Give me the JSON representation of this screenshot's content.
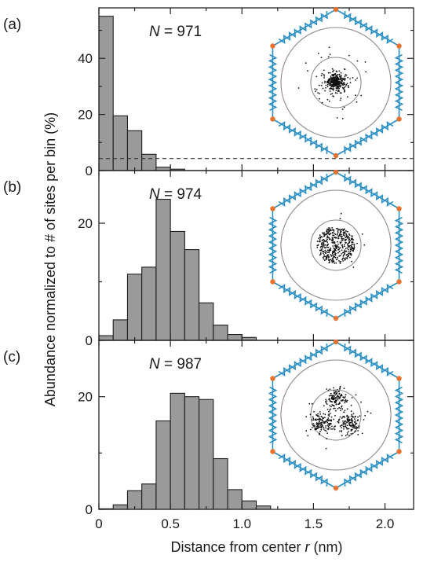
{
  "chart_data": [
    {
      "type": "bar",
      "panel": "(a)",
      "annotation": {
        "n_symbol": "N",
        "n_value": "= 971"
      },
      "bin_width": 0.1,
      "bin_starts": [
        0.0,
        0.1,
        0.2,
        0.3,
        0.4,
        0.5
      ],
      "values": [
        55.0,
        19.5,
        14.2,
        5.8,
        1.2,
        0.5
      ],
      "reference_line": {
        "y": 4.3,
        "style": "dashed"
      },
      "ylim": [
        0,
        58
      ],
      "yticks": [
        0,
        20,
        40
      ],
      "inset_points": 971,
      "inset_pattern": "central"
    },
    {
      "type": "bar",
      "panel": "(b)",
      "annotation": {
        "n_symbol": "N",
        "n_value": "= 974"
      },
      "bin_width": 0.1,
      "bin_starts": [
        0.0,
        0.1,
        0.2,
        0.3,
        0.4,
        0.5,
        0.6,
        0.7,
        0.8,
        0.9,
        1.0
      ],
      "values": [
        0.8,
        3.5,
        11.3,
        12.5,
        24.1,
        18.6,
        15.5,
        6.4,
        2.6,
        1.0,
        0.5
      ],
      "ylim": [
        0,
        29
      ],
      "yticks": [
        0,
        20
      ],
      "inset_points": 974,
      "inset_pattern": "disc"
    },
    {
      "type": "bar",
      "panel": "(c)",
      "annotation": {
        "n_symbol": "N",
        "n_value": "= 987"
      },
      "bin_width": 0.1,
      "bin_starts": [
        0.0,
        0.1,
        0.2,
        0.3,
        0.4,
        0.5,
        0.6,
        0.7,
        0.8,
        0.9,
        1.0,
        1.1
      ],
      "values": [
        0.1,
        0.8,
        3.3,
        4.5,
        15.7,
        20.6,
        20.0,
        19.5,
        9.0,
        3.5,
        1.5,
        0.6
      ],
      "ylim": [
        0,
        30
      ],
      "yticks": [
        0,
        20
      ],
      "inset_points": 987,
      "inset_pattern": "three-lobed"
    }
  ],
  "axes": {
    "xlabel_text": "Distance from center ",
    "xlabel_var": "r",
    "xlabel_unit": " (nm)",
    "ylabel": "Abundance normalized to # of sites per bin (%)",
    "xlim": [
      0,
      2.2
    ],
    "xticks": [
      "0",
      "0.5",
      "1.0",
      "1.5",
      "2.0"
    ],
    "xtick_values": [
      0,
      0.5,
      1.0,
      1.5,
      2.0
    ]
  },
  "colors": {
    "bar_fill": "#9a9a9a",
    "bar_edge": "#1e1e1e",
    "linker": "#2a8fc4",
    "node": "#e8732f",
    "sites": "#111111",
    "ring": "#8a8a8a"
  }
}
